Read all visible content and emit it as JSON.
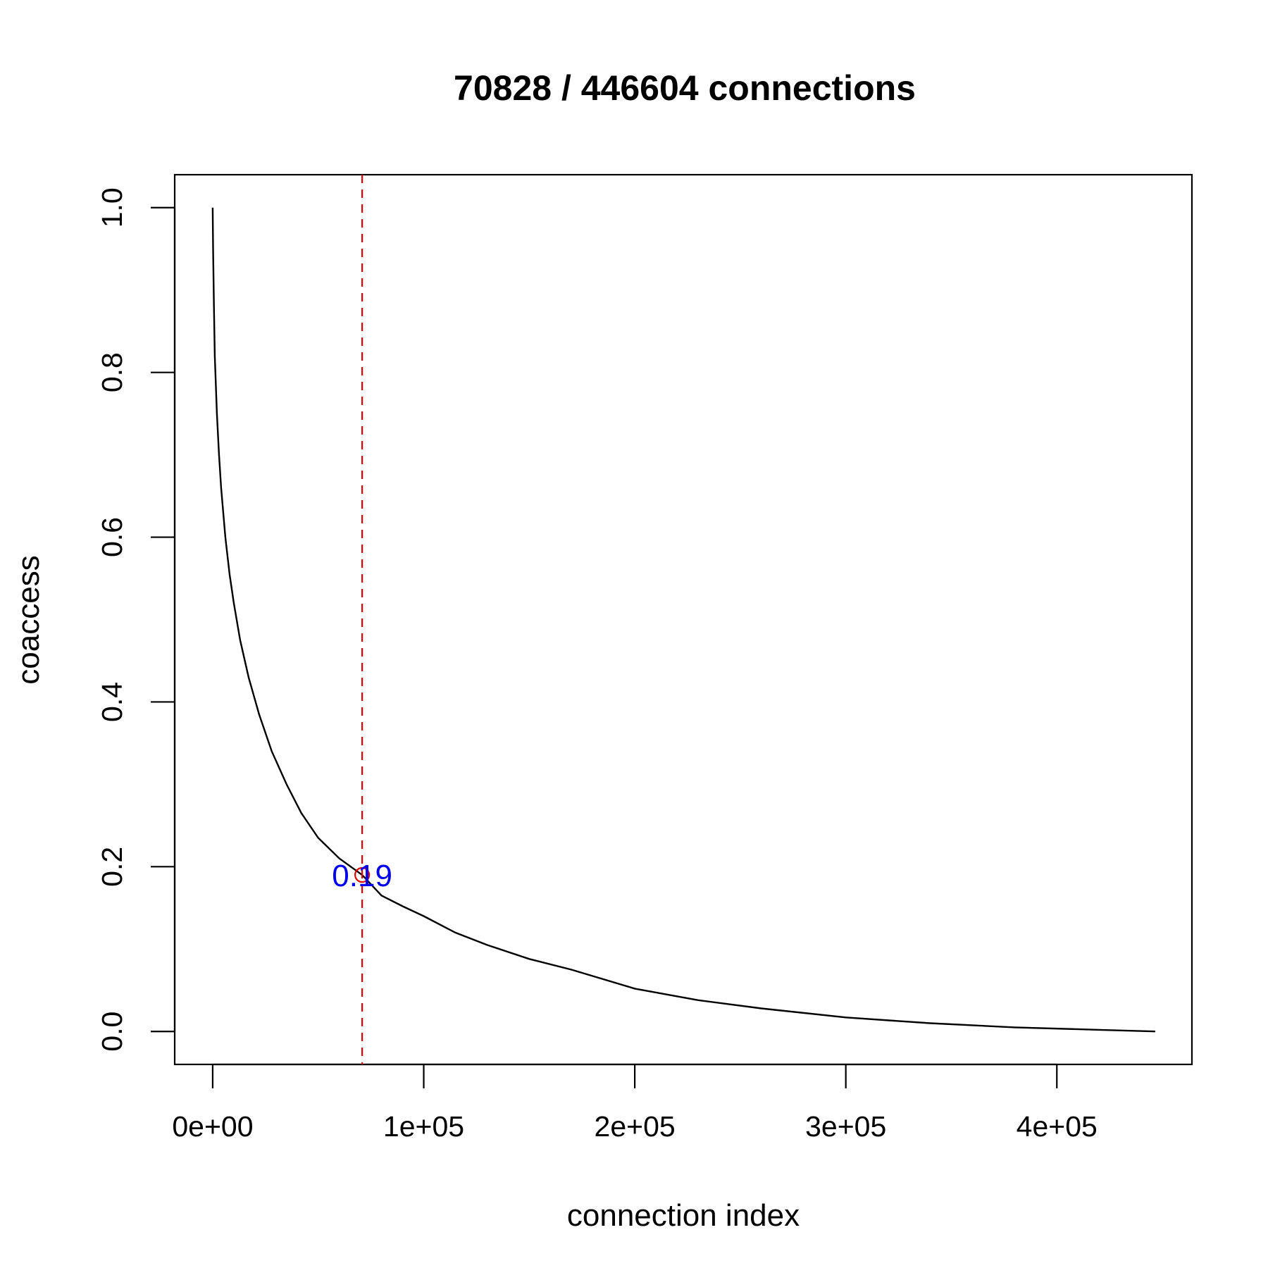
{
  "chart_data": {
    "type": "line",
    "title": "70828 / 446604 connections",
    "xlabel": "connection index",
    "ylabel": "coaccess",
    "xlim": [
      -18000,
      464000
    ],
    "ylim": [
      -0.04,
      1.04
    ],
    "x_ticks": [
      {
        "value": 0,
        "label": "0e+00"
      },
      {
        "value": 100000,
        "label": "1e+05"
      },
      {
        "value": 200000,
        "label": "2e+05"
      },
      {
        "value": 300000,
        "label": "3e+05"
      },
      {
        "value": 400000,
        "label": "4e+05"
      }
    ],
    "y_ticks": [
      {
        "value": 0.0,
        "label": "0.0"
      },
      {
        "value": 0.2,
        "label": "0.2"
      },
      {
        "value": 0.4,
        "label": "0.4"
      },
      {
        "value": 0.6,
        "label": "0.6"
      },
      {
        "value": 0.8,
        "label": "0.8"
      },
      {
        "value": 1.0,
        "label": "1.0"
      }
    ],
    "grid": false,
    "series": [
      {
        "color": "#000000",
        "x": [
          0,
          200,
          600,
          1000,
          2000,
          3000,
          4000,
          6000,
          8000,
          10000,
          13000,
          17000,
          22000,
          28000,
          35000,
          42000,
          50000,
          60000,
          70828,
          80000,
          90000,
          100000,
          115000,
          130000,
          150000,
          170000,
          200000,
          230000,
          260000,
          300000,
          340000,
          380000,
          420000,
          446604
        ],
        "y": [
          1.0,
          0.95,
          0.88,
          0.82,
          0.75,
          0.7,
          0.66,
          0.6,
          0.555,
          0.52,
          0.475,
          0.43,
          0.385,
          0.34,
          0.3,
          0.265,
          0.235,
          0.21,
          0.19,
          0.165,
          0.152,
          0.14,
          0.12,
          0.105,
          0.088,
          0.075,
          0.052,
          0.038,
          0.028,
          0.017,
          0.01,
          0.005,
          0.002,
          0.0
        ]
      }
    ],
    "threshold": {
      "x": 70828,
      "y": 0.19,
      "label": "0.19",
      "line_color": "#dd0000",
      "marker_color": "#dd0000",
      "label_color": "#0000ee"
    }
  }
}
